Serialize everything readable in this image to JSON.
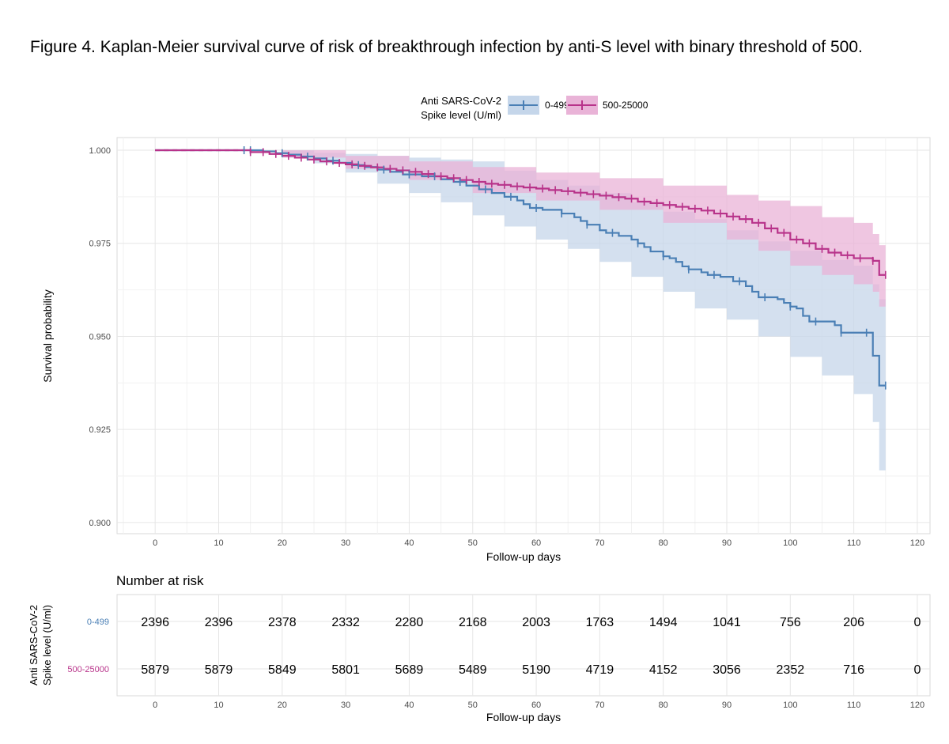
{
  "figure": {
    "title": "Figure 4. Kaplan-Meier survival curve of risk of breakthrough infection by anti-S level with binary threshold of 500."
  },
  "colors": {
    "series_low": "#4a7fb5",
    "series_low_band": "#c5d6ea",
    "series_high": "#b8338a",
    "series_high_band": "#e9b3d7",
    "grid": "#e6e6e6",
    "panel_border": "#d9d9d9",
    "text": "#000000",
    "tick_text": "#4d4d4d"
  },
  "chart_data": [
    {
      "type": "line",
      "subtype": "kaplan-meier",
      "xlabel": "Follow-up days",
      "ylabel": "Survival probability",
      "xlim": [
        -6,
        122
      ],
      "ylim": [
        0.897,
        1.0034
      ],
      "xticks": [
        0,
        10,
        20,
        30,
        40,
        50,
        60,
        70,
        80,
        90,
        100,
        110,
        120
      ],
      "yticks": [
        0.9,
        0.925,
        0.95,
        0.975,
        1.0
      ],
      "ytick_labels": [
        "0.900",
        "0.925",
        "0.950",
        "0.975",
        "1.000"
      ],
      "grid": true,
      "legend": {
        "title_line1": "Anti SARS-CoV-2",
        "title_line2": "Spike level (U/ml)",
        "position": "top"
      },
      "series": [
        {
          "name": "0-499",
          "steps": [
            [
              0,
              1.0
            ],
            [
              16,
              1.0
            ],
            [
              17,
              0.9997
            ],
            [
              19,
              0.9992
            ],
            [
              21,
              0.9988
            ],
            [
              23,
              0.9983
            ],
            [
              25,
              0.9978
            ],
            [
              27,
              0.9972
            ],
            [
              29,
              0.9966
            ],
            [
              31,
              0.996
            ],
            [
              33,
              0.9955
            ],
            [
              35,
              0.9948
            ],
            [
              37,
              0.9942
            ],
            [
              39,
              0.9935
            ],
            [
              42,
              0.993
            ],
            [
              45,
              0.9922
            ],
            [
              47,
              0.9915
            ],
            [
              49,
              0.9905
            ],
            [
              51,
              0.9895
            ],
            [
              53,
              0.9885
            ],
            [
              55,
              0.9875
            ],
            [
              57,
              0.9865
            ],
            [
              58,
              0.9855
            ],
            [
              59,
              0.9845
            ],
            [
              61,
              0.984
            ],
            [
              64,
              0.983
            ],
            [
              66,
              0.982
            ],
            [
              67,
              0.981
            ],
            [
              68,
              0.98
            ],
            [
              70,
              0.9785
            ],
            [
              71,
              0.9778
            ],
            [
              73,
              0.977
            ],
            [
              75,
              0.976
            ],
            [
              76,
              0.975
            ],
            [
              77,
              0.974
            ],
            [
              78,
              0.9728
            ],
            [
              80,
              0.9715
            ],
            [
              81,
              0.971
            ],
            [
              82,
              0.97
            ],
            [
              83,
              0.9688
            ],
            [
              84,
              0.968
            ],
            [
              86,
              0.9672
            ],
            [
              87,
              0.9665
            ],
            [
              89,
              0.966
            ],
            [
              91,
              0.9648
            ],
            [
              93,
              0.9635
            ],
            [
              94,
              0.962
            ],
            [
              95,
              0.9605
            ],
            [
              98,
              0.96
            ],
            [
              99,
              0.959
            ],
            [
              100,
              0.958
            ],
            [
              101,
              0.9575
            ],
            [
              102,
              0.9555
            ],
            [
              103,
              0.954
            ],
            [
              107,
              0.953
            ],
            [
              108,
              0.951
            ],
            [
              112,
              0.951
            ],
            [
              113,
              0.9448
            ],
            [
              114,
              0.9368
            ],
            [
              115,
              0.9368
            ]
          ],
          "upper": [
            [
              0,
              1.0
            ],
            [
              16,
              1.0
            ],
            [
              20,
              1.0
            ],
            [
              25,
              0.9993
            ],
            [
              30,
              0.999
            ],
            [
              35,
              0.9985
            ],
            [
              40,
              0.998
            ],
            [
              45,
              0.9975
            ],
            [
              50,
              0.997
            ],
            [
              55,
              0.9945
            ],
            [
              60,
              0.992
            ],
            [
              65,
              0.9905
            ],
            [
              70,
              0.9885
            ],
            [
              75,
              0.986
            ],
            [
              80,
              0.9835
            ],
            [
              85,
              0.9815
            ],
            [
              90,
              0.9785
            ],
            [
              95,
              0.9755
            ],
            [
              100,
              0.973
            ],
            [
              105,
              0.9705
            ],
            [
              110,
              0.969
            ],
            [
              113,
              0.964
            ],
            [
              114,
              0.96
            ],
            [
              115,
              0.96
            ]
          ],
          "lower": [
            [
              0,
              1.0
            ],
            [
              16,
              1.0
            ],
            [
              20,
              0.998
            ],
            [
              25,
              0.9965
            ],
            [
              30,
              0.994
            ],
            [
              35,
              0.991
            ],
            [
              40,
              0.9885
            ],
            [
              45,
              0.986
            ],
            [
              50,
              0.9825
            ],
            [
              55,
              0.9795
            ],
            [
              60,
              0.976
            ],
            [
              65,
              0.9735
            ],
            [
              70,
              0.97
            ],
            [
              75,
              0.966
            ],
            [
              80,
              0.962
            ],
            [
              85,
              0.9575
            ],
            [
              90,
              0.9545
            ],
            [
              95,
              0.95
            ],
            [
              100,
              0.9445
            ],
            [
              105,
              0.9395
            ],
            [
              110,
              0.9345
            ],
            [
              113,
              0.927
            ],
            [
              114,
              0.914
            ],
            [
              115,
              0.914
            ]
          ],
          "censor_x": [
            14,
            15,
            20,
            24,
            28,
            32,
            36,
            40,
            44,
            48,
            52,
            56,
            60,
            64,
            68,
            72,
            76,
            80,
            84,
            88,
            92,
            96,
            100,
            104,
            108,
            112,
            115
          ]
        },
        {
          "name": "500-25000",
          "steps": [
            [
              0,
              1.0
            ],
            [
              14,
              1.0
            ],
            [
              15,
              0.9995
            ],
            [
              18,
              0.999
            ],
            [
              20,
              0.9985
            ],
            [
              22,
              0.998
            ],
            [
              24,
              0.9975
            ],
            [
              26,
              0.997
            ],
            [
              28,
              0.9966
            ],
            [
              30,
              0.9962
            ],
            [
              32,
              0.9958
            ],
            [
              34,
              0.9954
            ],
            [
              36,
              0.995
            ],
            [
              38,
              0.9946
            ],
            [
              40,
              0.9942
            ],
            [
              42,
              0.9936
            ],
            [
              44,
              0.993
            ],
            [
              46,
              0.9925
            ],
            [
              48,
              0.992
            ],
            [
              50,
              0.9915
            ],
            [
              52,
              0.991
            ],
            [
              54,
              0.9907
            ],
            [
              56,
              0.9903
            ],
            [
              58,
              0.99
            ],
            [
              60,
              0.9897
            ],
            [
              62,
              0.9893
            ],
            [
              64,
              0.989
            ],
            [
              66,
              0.9886
            ],
            [
              68,
              0.9882
            ],
            [
              70,
              0.9878
            ],
            [
              72,
              0.9874
            ],
            [
              74,
              0.987
            ],
            [
              76,
              0.9862
            ],
            [
              78,
              0.9858
            ],
            [
              80,
              0.9853
            ],
            [
              82,
              0.9848
            ],
            [
              84,
              0.9843
            ],
            [
              86,
              0.9838
            ],
            [
              88,
              0.983
            ],
            [
              90,
              0.9822
            ],
            [
              92,
              0.9815
            ],
            [
              94,
              0.9805
            ],
            [
              96,
              0.979
            ],
            [
              98,
              0.9778
            ],
            [
              100,
              0.976
            ],
            [
              102,
              0.975
            ],
            [
              104,
              0.9735
            ],
            [
              106,
              0.9725
            ],
            [
              108,
              0.9718
            ],
            [
              110,
              0.971
            ],
            [
              113,
              0.9703
            ],
            [
              114,
              0.9665
            ],
            [
              115,
              0.9665
            ]
          ],
          "upper": [
            [
              0,
              1.0
            ],
            [
              14,
              1.0
            ],
            [
              20,
              1.0
            ],
            [
              30,
              0.9985
            ],
            [
              40,
              0.997
            ],
            [
              50,
              0.9955
            ],
            [
              60,
              0.994
            ],
            [
              70,
              0.9925
            ],
            [
              80,
              0.9905
            ],
            [
              90,
              0.988
            ],
            [
              95,
              0.9865
            ],
            [
              100,
              0.985
            ],
            [
              105,
              0.982
            ],
            [
              110,
              0.9805
            ],
            [
              113,
              0.9775
            ],
            [
              114,
              0.9745
            ],
            [
              115,
              0.9745
            ]
          ],
          "lower": [
            [
              0,
              1.0
            ],
            [
              14,
              1.0
            ],
            [
              20,
              0.998
            ],
            [
              30,
              0.995
            ],
            [
              40,
              0.992
            ],
            [
              50,
              0.9885
            ],
            [
              60,
              0.9865
            ],
            [
              70,
              0.984
            ],
            [
              80,
              0.9805
            ],
            [
              90,
              0.976
            ],
            [
              95,
              0.973
            ],
            [
              100,
              0.969
            ],
            [
              105,
              0.9665
            ],
            [
              110,
              0.964
            ],
            [
              113,
              0.962
            ],
            [
              114,
              0.958
            ],
            [
              115,
              0.958
            ]
          ],
          "censor_x": [
            15,
            17,
            19,
            21,
            23,
            25,
            27,
            29,
            31,
            33,
            35,
            37,
            39,
            41,
            43,
            45,
            47,
            49,
            51,
            53,
            55,
            57,
            59,
            61,
            63,
            65,
            67,
            69,
            71,
            73,
            75,
            77,
            79,
            81,
            83,
            85,
            87,
            89,
            91,
            93,
            95,
            97,
            99,
            101,
            103,
            105,
            107,
            109,
            111,
            113,
            115
          ]
        }
      ]
    },
    {
      "type": "table",
      "title": "Number at risk",
      "ylabel_line1": "Anti SARS-CoV-2",
      "ylabel_line2": "Spike level (U/ml)",
      "xlabel": "Follow-up days",
      "x": [
        0,
        10,
        20,
        30,
        40,
        50,
        60,
        70,
        80,
        90,
        100,
        110,
        120
      ],
      "xtick_labels": [
        "0",
        "10",
        "20",
        "30",
        "40",
        "50",
        "60",
        "70",
        "80",
        "90",
        "100",
        "110",
        "120"
      ],
      "rows": [
        {
          "name": "0-499",
          "values": [
            "2396",
            "2396",
            "2378",
            "2332",
            "2280",
            "2168",
            "2003",
            "1763",
            "1494",
            "1041",
            "756",
            "206",
            "0"
          ]
        },
        {
          "name": "500-25000",
          "values": [
            "5879",
            "5879",
            "5849",
            "5801",
            "5689",
            "5489",
            "5190",
            "4719",
            "4152",
            "3056",
            "2352",
            "716",
            "0"
          ]
        }
      ]
    }
  ]
}
